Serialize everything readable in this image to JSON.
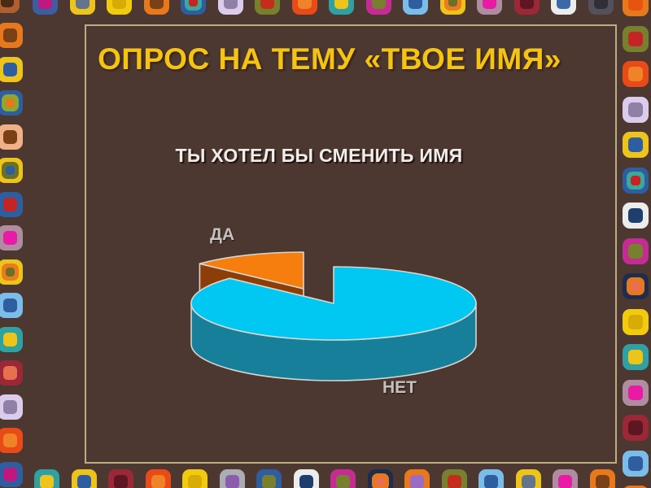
{
  "slide": {
    "background": "#4C3731",
    "panel_border_color": "#BEAC85",
    "title": {
      "text": "ОПРОС НА ТЕМУ «ТВОЕ ИМЯ»",
      "color": "#F5C413"
    },
    "subtitle": {
      "text": "ТЫ ХОТЕЛ БЫ СМЕНИТЬ ИМЯ",
      "color": "#F0ECE7"
    }
  },
  "chart_data": {
    "type": "pie",
    "style": "3d-exploded-pie",
    "title": "ТЫ ХОТЕЛ БЫ СМЕНИТЬ ИМЯ",
    "categories": [
      "ДА",
      "НЕТ"
    ],
    "values": [
      13,
      87
    ],
    "value_labels_visible": false,
    "values_note": "estimated from slice angles; no numbers shown on slide",
    "legend": "none",
    "label_color": "#C6C1BD",
    "slices": [
      {
        "label": "ДА",
        "value": 13,
        "top_color": "#F57E0E",
        "side_color": "#8C3D08",
        "exploded": true
      },
      {
        "label": "НЕТ",
        "value": 87,
        "top_color": "#00C8F2",
        "side_color": "#177F99",
        "exploded": false
      }
    ]
  },
  "frame": {
    "background": "#4C3731",
    "corner": [
      "#B06030",
      "#4A2C14"
    ],
    "top": [
      [
        "#3C5EA0",
        "#C01880"
      ],
      [
        "#ECC41C",
        "#64748C"
      ],
      [
        "#F2CA10",
        "#D8AC04"
      ],
      [
        "#E8781E",
        "#7A4016"
      ],
      [
        "#2E5EA0",
        "#3CA89C",
        "#C42424"
      ],
      [
        "#DCCCEC",
        "#9080A8"
      ],
      [
        "#788030",
        "#C42C1C"
      ],
      [
        "#E84A18",
        "#F08228"
      ],
      [
        "#30A0A0",
        "#ECC41C"
      ],
      [
        "#C42C94",
        "#788030"
      ],
      [
        "#7CBCE8",
        "#2E5EA0"
      ],
      [
        "#ECC41C",
        "#EC7A1E",
        "#6A7028"
      ],
      [
        "#B08CA0",
        "#E81CA4"
      ],
      [
        "#9A2836",
        "#5E1622"
      ],
      [
        "#ECECEC",
        "#3A68A8"
      ],
      [
        "#54505C",
        "#322E38"
      ]
    ],
    "right": [
      [
        "#E8781E",
        "#E85410"
      ],
      [
        "#788030",
        "#C42424"
      ],
      [
        "#E84A18",
        "#F08228"
      ],
      [
        "#DCCCEC",
        "#9080A8"
      ],
      [
        "#ECC41C",
        "#2E5EA0"
      ],
      [
        "#2E5EA0",
        "#3CA89C",
        "#C42424"
      ],
      [
        "#ECECEC",
        "#1E3E6E"
      ],
      [
        "#C42C94",
        "#788030"
      ],
      [
        "#1E2C4E",
        "#E8781E",
        "#E87050"
      ],
      [
        "#F2CA10",
        "#D8AC04"
      ],
      [
        "#30A0A0",
        "#ECC41C"
      ],
      [
        "#B08CA0",
        "#E81CA4"
      ],
      [
        "#9A2836",
        "#5E1622"
      ],
      [
        "#7CBCE8",
        "#2E5EA0"
      ],
      [
        "#E8781E",
        "#9A6CC4"
      ]
    ],
    "bottom": [
      [
        "#30A0A0",
        "#ECC41C"
      ],
      [
        "#ECC41C",
        "#2E5EA0"
      ],
      [
        "#9A2836",
        "#5E1622"
      ],
      [
        "#E84A18",
        "#F08228"
      ],
      [
        "#F2CA10",
        "#D8AC04"
      ],
      [
        "#ACACB4",
        "#8C5CAC"
      ],
      [
        "#2E5EA0",
        "#788030"
      ],
      [
        "#ECECEC",
        "#1E3E6E"
      ],
      [
        "#C42C94",
        "#788030"
      ],
      [
        "#1E2C4E",
        "#E8781E",
        "#E87050"
      ],
      [
        "#E8781E",
        "#9A6CC4"
      ],
      [
        "#788030",
        "#C42C1C"
      ],
      [
        "#7CBCE8",
        "#2E5EA0"
      ],
      [
        "#ECC41C",
        "#64748C"
      ],
      [
        "#B08CA0",
        "#E81CA4"
      ],
      [
        "#E8781E",
        "#7A4016"
      ]
    ],
    "left": [
      [
        "#E8781E",
        "#7A4016"
      ],
      [
        "#ECC41C",
        "#2E5EA0"
      ],
      [
        "#2E5EA0",
        "#8CA830",
        "#E8781E"
      ],
      [
        "#F0B088",
        "#7A4016"
      ],
      [
        "#ECC41C",
        "#6A7028",
        "#2E5EA0"
      ],
      [
        "#2E5EA0",
        "#C42424"
      ],
      [
        "#B08CA0",
        "#E81CA4"
      ],
      [
        "#ECC41C",
        "#EC7A1E",
        "#6A7028"
      ],
      [
        "#7CBCE8",
        "#2E5EA0"
      ],
      [
        "#30A0A0",
        "#ECC41C"
      ],
      [
        "#9A2836",
        "#E87050"
      ],
      [
        "#DCCCEC",
        "#9080A8"
      ],
      [
        "#E84A18",
        "#F08228"
      ],
      [
        "#2E5EA0",
        "#C01880"
      ]
    ]
  }
}
